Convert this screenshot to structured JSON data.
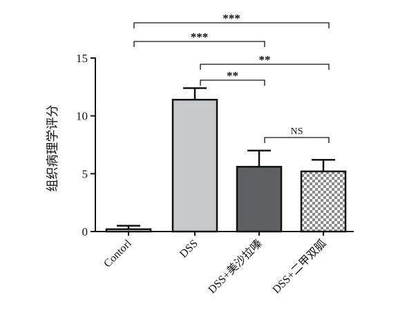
{
  "chart_data": {
    "type": "bar",
    "categories": [
      "Contorl",
      "DSS",
      "DSS+美沙拉嗪",
      "DSS+二甲双胍"
    ],
    "values": [
      0.2,
      11.4,
      5.6,
      5.2
    ],
    "errors": [
      0.3,
      1.0,
      1.4,
      1.0
    ],
    "ylabel": "组织病理学评分",
    "ylim": [
      0,
      15
    ],
    "yticks": [
      0,
      5,
      10,
      15
    ],
    "bar_fills": [
      "#ffffff",
      "#c8c9cb",
      "#5f6064",
      "checker"
    ],
    "significance": [
      {
        "from": 0,
        "to": 3,
        "label": "***"
      },
      {
        "from": 0,
        "to": 2,
        "label": "***"
      },
      {
        "from": 1,
        "to": 3,
        "label": "**"
      },
      {
        "from": 1,
        "to": 2,
        "label": "**"
      },
      {
        "from": 2,
        "to": 3,
        "label": "NS"
      }
    ]
  }
}
